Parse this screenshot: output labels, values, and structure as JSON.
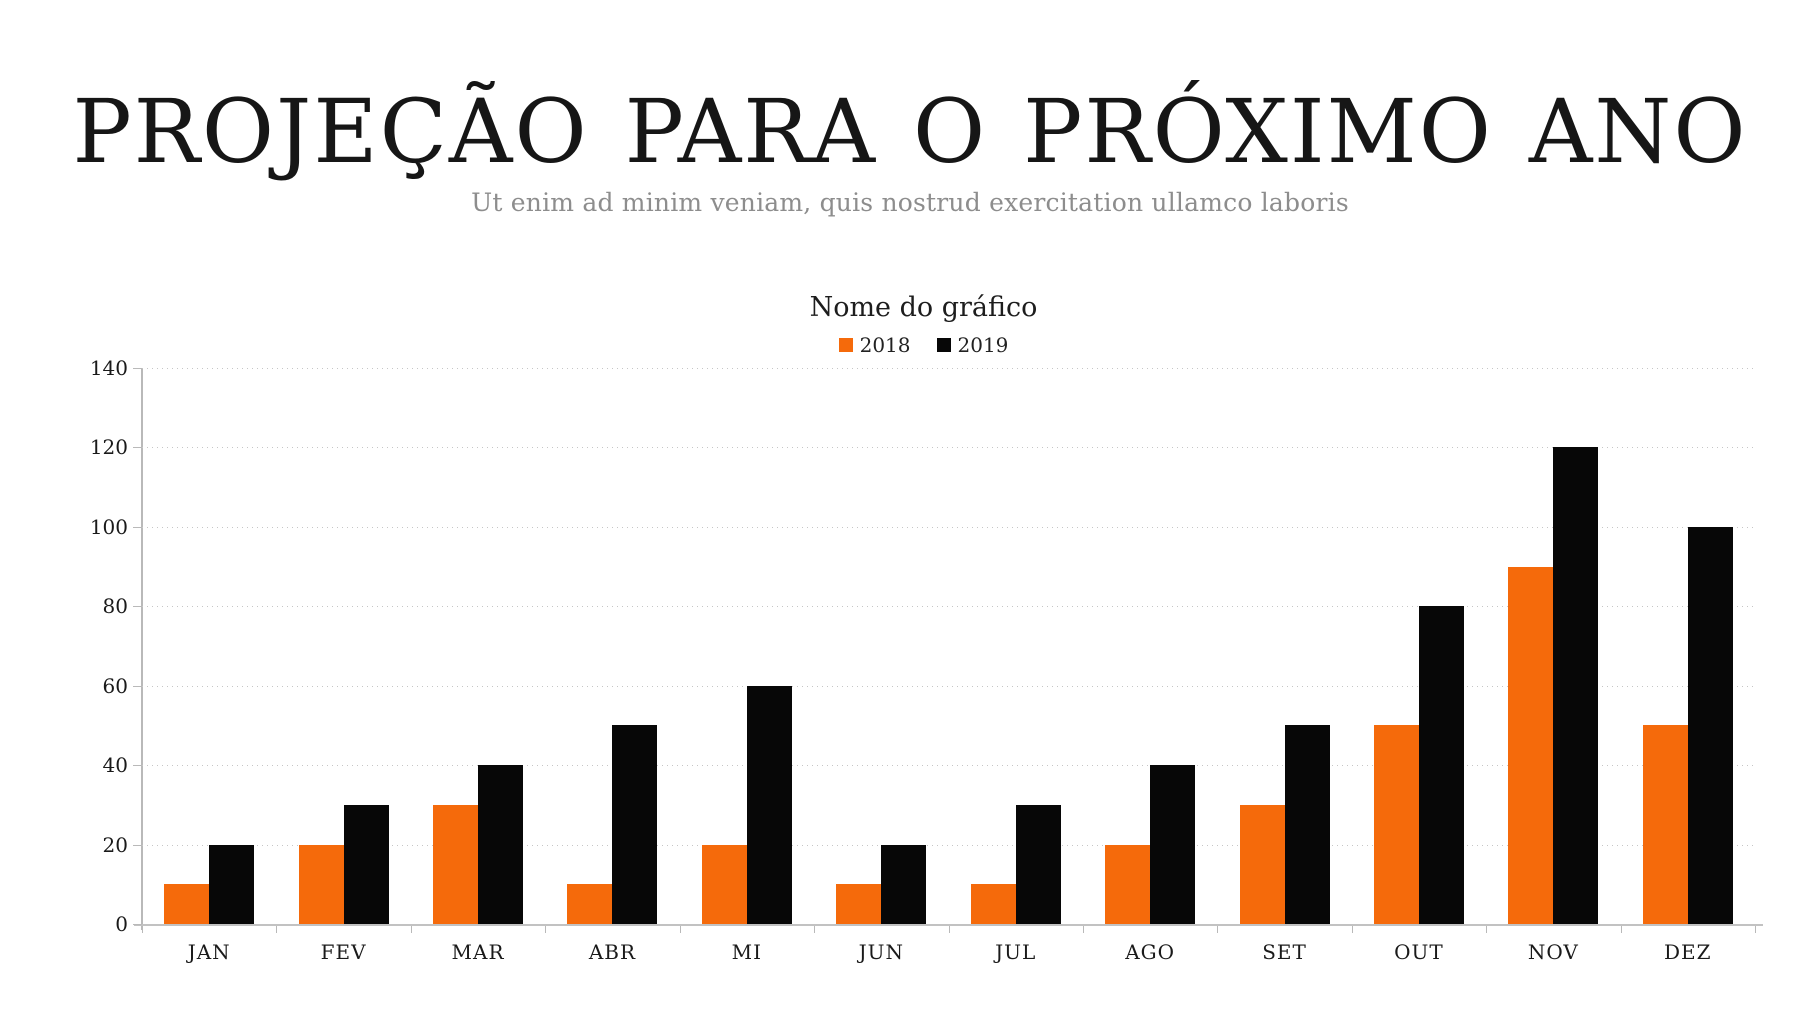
{
  "slide": {
    "title": "PROJEÇÃO PARA O PRÓXIMO ANO",
    "subtitle": "Ut enim ad minim veniam, quis nostrud exercitation ullamco laboris"
  },
  "chart_data": {
    "type": "bar",
    "title": "Nome do gráfico",
    "categories": [
      "JAN",
      "FEV",
      "MAR",
      "ABR",
      "MI",
      "JUN",
      "JUL",
      "AGO",
      "SET",
      "OUT",
      "NOV",
      "DEZ"
    ],
    "series": [
      {
        "name": "2018",
        "color": "#f56a0b",
        "values": [
          10,
          20,
          30,
          10,
          20,
          10,
          10,
          20,
          30,
          50,
          90,
          50
        ]
      },
      {
        "name": "2019",
        "color": "#070707",
        "values": [
          20,
          30,
          40,
          50,
          60,
          20,
          30,
          40,
          50,
          80,
          120,
          100
        ]
      }
    ],
    "ylim": [
      0,
      140
    ],
    "ytick_step": 20,
    "grid": "horizontal-dotted",
    "legend_position": "top-center",
    "axis_color": "#b9b9b9",
    "gridline_color": "#c6c6c6"
  }
}
